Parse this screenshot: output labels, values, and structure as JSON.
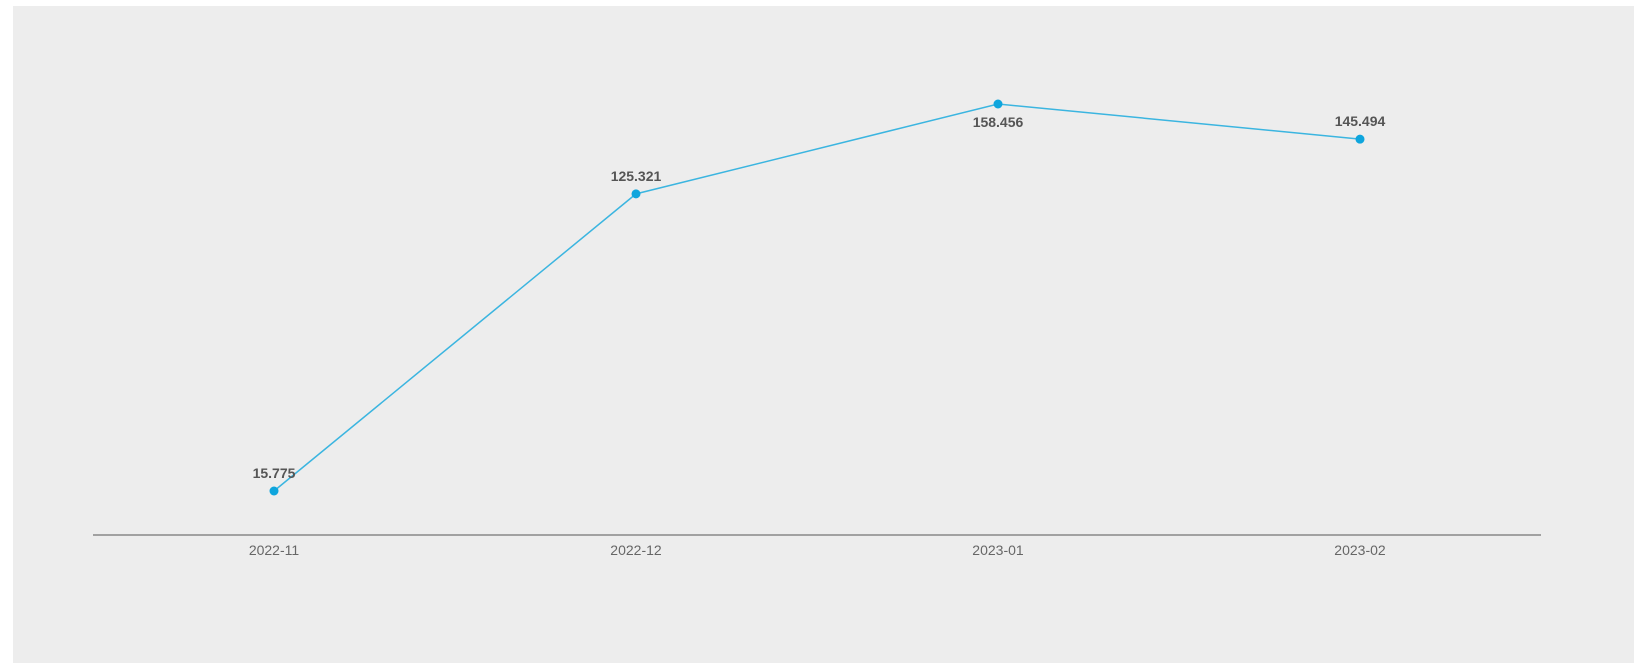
{
  "chart_data": {
    "type": "line",
    "title": "",
    "xlabel": "",
    "ylabel": "",
    "categories": [
      "2022-11",
      "2022-12",
      "2023-01",
      "2023-02"
    ],
    "series": [
      {
        "values": [
          15.775,
          125.321,
          158.456,
          145.494
        ],
        "color": "#3bb5e0",
        "marker_color": "#0ea5dd"
      }
    ],
    "data_labels": [
      "15.775",
      "125.321",
      "158.456",
      "145.494"
    ],
    "label_positions": [
      "above",
      "above",
      "below",
      "above"
    ],
    "ylim": [
      0,
      158.456
    ],
    "y_axis_visible": false,
    "grid": false,
    "legend": "none"
  },
  "colors": {
    "background": "#ededed",
    "axis": "#555555"
  }
}
